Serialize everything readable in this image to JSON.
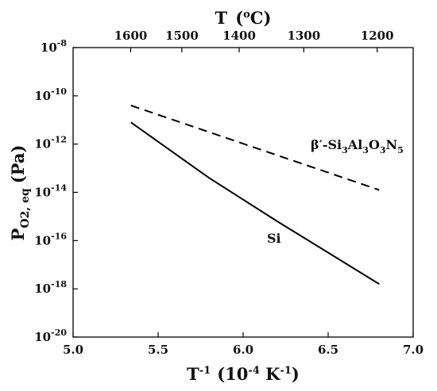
{
  "chart_data": {
    "type": "line",
    "xlabel": "T-1 (10-4 K-1)",
    "ylabel": "PO2, eq (Pa)",
    "top_xlabel": "T (oC)",
    "xlim": [
      5.0,
      7.0
    ],
    "ylim_log10": [
      -20,
      -8
    ],
    "y_scale": "log",
    "grid": false,
    "x_ticks": [
      5.0,
      5.5,
      6.0,
      6.5,
      7.0
    ],
    "x_tick_labels": [
      "5.0",
      "5.5",
      "6.0",
      "6.5",
      "7.0"
    ],
    "y_ticks_log10": [
      -20,
      -18,
      -16,
      -14,
      -12,
      -10,
      -8
    ],
    "top_ticks_celsius": [
      1600,
      1500,
      1400,
      1300,
      1200
    ],
    "top_tick_labels": [
      "1600",
      "1500",
      "1400",
      "1300",
      "1200"
    ],
    "series": [
      {
        "name": "β′-Si3Al3O3N5",
        "style": "dashed",
        "color": "#000000",
        "x": [
          5.34,
          6.8
        ],
        "log10_y": [
          -10.4,
          -13.9
        ]
      },
      {
        "name": "Si",
        "style": "solid",
        "color": "#000000",
        "x": [
          5.34,
          5.8,
          6.2,
          6.8
        ],
        "log10_y": [
          -11.1,
          -13.4,
          -15.2,
          -17.8
        ]
      }
    ],
    "annotations": [
      {
        "text": "β′-Si3Al3O3N5",
        "series": 0
      },
      {
        "text": "Si",
        "series": 1
      }
    ]
  }
}
